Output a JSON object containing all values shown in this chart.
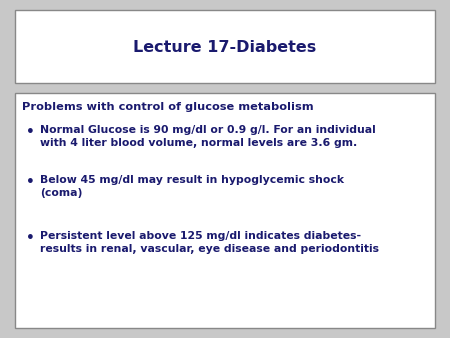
{
  "title": "Lecture 17-Diabetes",
  "title_color": "#1a1a6e",
  "background_color": "#c8c8c8",
  "box_bg_color": "#ffffff",
  "text_color": "#1a1a6e",
  "border_color": "#888888",
  "header": "Problems with control of glucose metabolism",
  "bullets": [
    "Normal Glucose is 90 mg/dl or 0.9 g/l. For an individual\nwith 4 liter blood volume, normal levels are 3.6 gm.",
    "Below 45 mg/dl may result in hypoglycemic shock\n(coma)",
    "Persistent level above 125 mg/dl indicates diabetes-\nresults in renal, vascular, eye disease and periodontitis"
  ],
  "title_fontsize": 11.5,
  "header_fontsize": 8.2,
  "bullet_fontsize": 7.8,
  "fig_width": 4.5,
  "fig_height": 3.38,
  "dpi": 100
}
